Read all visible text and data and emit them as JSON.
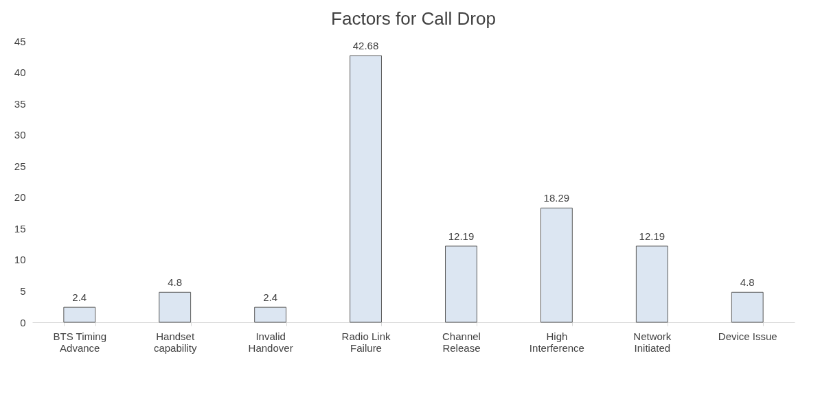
{
  "chart_data": {
    "type": "bar",
    "title": "Factors for Call Drop",
    "categories": [
      "BTS Timing Advance",
      "Handset capability",
      "Invalid Handover",
      "Radio Link Failure",
      "Channel Release",
      "High Interference",
      "Network Initiated",
      "Device Issue"
    ],
    "values": [
      2.4,
      4.8,
      2.4,
      42.68,
      12.19,
      18.29,
      12.19,
      4.8
    ],
    "color": "#dce6f2",
    "ylim": [
      0,
      45
    ],
    "yticks": [
      0,
      5,
      10,
      15,
      20,
      25,
      30,
      35,
      40,
      45
    ],
    "grid": false,
    "data_labels": true
  }
}
